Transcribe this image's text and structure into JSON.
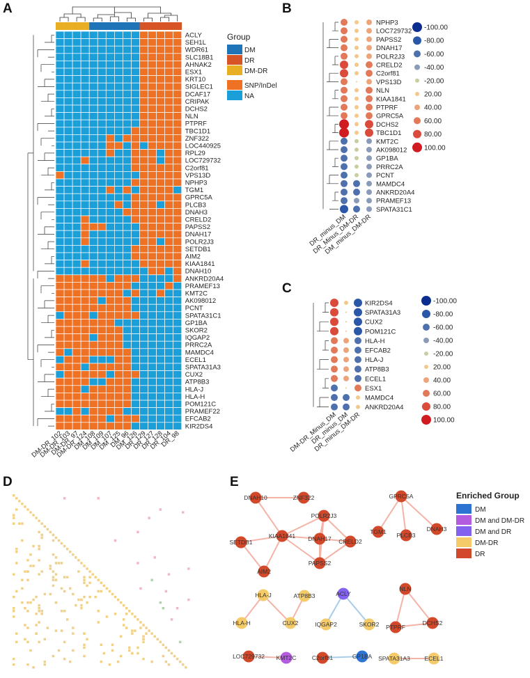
{
  "panels": {
    "A": "A",
    "B": "B",
    "C": "C",
    "D": "D",
    "E": "E"
  },
  "colors": {
    "snp": "#EE7124",
    "na": "#1B9FD8",
    "dm": "#1F73B7",
    "dr": "#D65425",
    "dmdr": "#E9AF24",
    "tri_yellow": "#F2D184",
    "tri_pink": "#F4B6C2",
    "tri_green": "#A9D8A6",
    "node_dr": "#D1482A",
    "node_dmdr": "#F5CB6A",
    "node_dm": "#2C73D2",
    "node_dm_dmdr": "#B45CE0",
    "node_dm_dr": "#8362F0",
    "edge_red": "#F4B3A6",
    "edge_blue": "#A8CDEA"
  },
  "panelA": {
    "legend_group_title": "Group",
    "legend_group": [
      {
        "label": "DM",
        "color": "#1F73B7"
      },
      {
        "label": "DR",
        "color": "#D65425"
      },
      {
        "label": "DM-DR",
        "color": "#E9AF24"
      }
    ],
    "legend_mut": [
      {
        "label": "SNP/InDel",
        "color": "#EE7124"
      },
      {
        "label": "NA",
        "color": "#1B9FD8"
      }
    ],
    "samples": [
      "DM-DR_102",
      "DM-DR_103",
      "DM-DR_97",
      "DM-DR_124",
      "DM_108",
      "DM_109",
      "DM_107",
      "DM_125",
      "DM_96",
      "DM_126",
      "DR_129",
      "DR_127",
      "DR_128",
      "DR_104",
      "DR_98"
    ],
    "sample_groups": [
      "DM-DR",
      "DM-DR",
      "DM-DR",
      "DM-DR",
      "DM",
      "DM",
      "DM",
      "DM",
      "DM",
      "DM",
      "DR",
      "DR",
      "DR",
      "DR",
      "DR"
    ],
    "genes": [
      "ACLY",
      "SEH1L",
      "WDR61",
      "SLC18B1",
      "AHNAK2",
      "ESX1",
      "KRT10",
      "SIGLEC1",
      "DCAF17",
      "CRIPAK",
      "DCHS2",
      "NLN",
      "PTPRF",
      "TBC1D1",
      "ZNF322",
      "LOC440925",
      "RPL29",
      "LOC729732",
      "C2orf81",
      "VPS13D",
      "NPHP3",
      "TGM1",
      "GPRC5A",
      "PLCB3",
      "DNAH3",
      "CRELD2",
      "PAPSS2",
      "DNAH17",
      "POLR2J3",
      "SETDB1",
      "AIM2",
      "KIAA1841",
      "DNAH10",
      "ANKRD20A4",
      "PRAMEF13",
      "KMT2C",
      "AK098012",
      "PCNT",
      "SPATA31C1",
      "GP1BA",
      "SKOR2",
      "IQGAP2",
      "PRRC2A",
      "MAMDC4",
      "ECEL1",
      "SPATA31A3",
      "CUX2",
      "ATP8B3",
      "HLA-J",
      "HLA-H",
      "POM121C",
      "PRAMEF22",
      "EFCAB2",
      "KIR2DS4"
    ],
    "matrix": [
      "000000000011111",
      "000000000011111",
      "000000000011111",
      "000000000011111",
      "000000000011111",
      "000000000011111",
      "000000000011111",
      "000000000011111",
      "000000000011111",
      "000000000011111",
      "000000000011111",
      "000000000011111",
      "000000000011111",
      "000000000111111",
      "000000101111111",
      "000000110101111",
      "000000100111011",
      "000100000111011",
      "000000000111111",
      "100000000011111",
      "000000000111111",
      "000000101011110",
      "000000000111111",
      "000000010111011",
      "000000001111111",
      "000100000111111",
      "000111000011111",
      "000100000011111",
      "000100000011011",
      "000000000111111",
      "000000000111111",
      "000100000011111",
      "000000000001101",
      "111111011100001",
      "111111111000010",
      "111111110100100",
      "111110111000000",
      "111111111000000",
      "011101111100000",
      "111111100000000",
      "111111110000000",
      "111101110000000",
      "111111110000000",
      "101111111000000",
      "011100011000000",
      "111011111000000",
      "011111011100000",
      "111100111000000",
      "111011111000000",
      "111111111000000",
      "111111111000000",
      "001011110000000",
      "111111011100000",
      "111111111000000"
    ]
  },
  "panelB": {
    "genes": [
      "NPHP3",
      "LOC729732",
      "PAPSS2",
      "DNAH17",
      "POLR2J3",
      "CRELD2",
      "C2orf81",
      "VPS13D",
      "NLN",
      "KIAA1841",
      "PTPRF",
      "GPRC5A",
      "DCHS2",
      "TBC1D1",
      "KMT2C",
      "AK098012",
      "GP1BA",
      "PRRC2A",
      "PCNT",
      "MAMDC4",
      "ANKRD20A4",
      "PRAMEF13",
      "SPATA31C1"
    ],
    "columns": [
      "DR_minus_DM",
      "DR_Minus_DM-DR",
      "DM_minus_DM-DR"
    ],
    "values": [
      [
        60,
        20,
        40
      ],
      [
        60,
        20,
        40
      ],
      [
        60,
        20,
        40
      ],
      [
        60,
        20,
        40
      ],
      [
        60,
        20,
        40
      ],
      [
        80,
        20,
        60
      ],
      [
        80,
        20,
        60
      ],
      [
        60,
        0,
        40
      ],
      [
        60,
        20,
        60
      ],
      [
        60,
        20,
        60
      ],
      [
        60,
        20,
        60
      ],
      [
        60,
        20,
        60
      ],
      [
        100,
        20,
        80
      ],
      [
        100,
        20,
        80
      ],
      [
        -60,
        -20,
        -40
      ],
      [
        -60,
        -20,
        -40
      ],
      [
        -60,
        -20,
        -40
      ],
      [
        -60,
        -20,
        -40
      ],
      [
        -60,
        -20,
        -40
      ],
      [
        -60,
        -60,
        -40
      ],
      [
        -60,
        -60,
        -40
      ],
      [
        -60,
        -40,
        -40
      ],
      [
        -80,
        -60,
        -40
      ]
    ],
    "legend": [
      "-100.00",
      "-80.00",
      "-60.00",
      "-40.00",
      "-20.00",
      "20.00",
      "40.00",
      "60.00",
      "80.00",
      "100.00"
    ]
  },
  "panelC": {
    "genes": [
      "KIR2DS4",
      "SPATA31A3",
      "CUX2",
      "POM121C",
      "HLA-H",
      "EFCAB2",
      "HLA-J",
      "ATP8B3",
      "ECEL1",
      "ESX1",
      "MAMDC4",
      "ANKRD20A4"
    ],
    "columns": [
      "DM-DR_Minus_DM",
      "DR_minus_DM",
      "DR_minus_DM-DR"
    ],
    "values": [
      [
        80,
        20,
        -80
      ],
      [
        80,
        0,
        -80
      ],
      [
        80,
        0,
        -80
      ],
      [
        80,
        0,
        -80
      ],
      [
        60,
        40,
        -60
      ],
      [
        60,
        40,
        -60
      ],
      [
        60,
        40,
        -60
      ],
      [
        60,
        40,
        -60
      ],
      [
        60,
        40,
        -60
      ],
      [
        -60,
        0,
        60
      ],
      [
        -60,
        -60,
        20
      ],
      [
        -60,
        -60,
        20
      ]
    ],
    "legend": [
      "-100.00",
      "-80.00",
      "-60.00",
      "-40.00",
      "-20.00",
      "20.00",
      "40.00",
      "60.00",
      "80.00",
      "100.00"
    ]
  },
  "panelE": {
    "legend_title": "Enriched Group",
    "legend": [
      {
        "label": "DM",
        "color": "#2C73D2"
      },
      {
        "label": "DM and DM-DR",
        "color": "#B45CE0"
      },
      {
        "label": "DM and DR",
        "color": "#8362F0"
      },
      {
        "label": "DM-DR",
        "color": "#F5CB6A"
      },
      {
        "label": "DR",
        "color": "#D1482A"
      }
    ],
    "nodes": [
      {
        "label": "DNAH10",
        "g": "dr"
      },
      {
        "label": "ZNF322",
        "g": "dr"
      },
      {
        "label": "POLR2J3",
        "g": "dr"
      },
      {
        "label": "KIAA1841",
        "g": "dr"
      },
      {
        "label": "DNAH17",
        "g": "dr"
      },
      {
        "label": "CRELD2",
        "g": "dr"
      },
      {
        "label": "SETDB1",
        "g": "dr"
      },
      {
        "label": "PAPSS2",
        "g": "dr"
      },
      {
        "label": "AIM2",
        "g": "dr"
      },
      {
        "label": "GPRC5A",
        "g": "dr"
      },
      {
        "label": "TGM1",
        "g": "dr"
      },
      {
        "label": "PLCB3",
        "g": "dr"
      },
      {
        "label": "DNAH3",
        "g": "dr"
      },
      {
        "label": "HLA-J",
        "g": "dmdr"
      },
      {
        "label": "ATP8B3",
        "g": "dmdr"
      },
      {
        "label": "HLA-H",
        "g": "dmdr"
      },
      {
        "label": "CUX2",
        "g": "dmdr"
      },
      {
        "label": "ACLY",
        "g": "dm_dr"
      },
      {
        "label": "IQGAP2",
        "g": "dmdr"
      },
      {
        "label": "SKOR2",
        "g": "dmdr"
      },
      {
        "label": "NLN",
        "g": "dr"
      },
      {
        "label": "PTPRF",
        "g": "dr"
      },
      {
        "label": "DCHS2",
        "g": "dr"
      },
      {
        "label": "LOC729732",
        "g": "dr"
      },
      {
        "label": "KMT2C",
        "g": "dm_dmdr"
      },
      {
        "label": "C2orf81",
        "g": "dr"
      },
      {
        "label": "GP1BA",
        "g": "dm"
      },
      {
        "label": "SPATA31A3",
        "g": "dmdr"
      },
      {
        "label": "ECEL1",
        "g": "dmdr"
      }
    ],
    "edges": [
      [
        "DNAH10",
        "ZNF322",
        "red"
      ],
      [
        "DNAH10",
        "KIAA1841",
        "red"
      ],
      [
        "POLR2J3",
        "KIAA1841",
        "red"
      ],
      [
        "POLR2J3",
        "DNAH17",
        "red"
      ],
      [
        "POLR2J3",
        "CRELD2",
        "red"
      ],
      [
        "POLR2J3",
        "PAPSS2",
        "red"
      ],
      [
        "KIAA1841",
        "DNAH17",
        "red"
      ],
      [
        "KIAA1841",
        "SETDB1",
        "red"
      ],
      [
        "KIAA1841",
        "PAPSS2",
        "red"
      ],
      [
        "KIAA1841",
        "AIM2",
        "red"
      ],
      [
        "SETDB1",
        "AIM2",
        "red"
      ],
      [
        "DNAH17",
        "CRELD2",
        "red"
      ],
      [
        "DNAH17",
        "PAPSS2",
        "red"
      ],
      [
        "CRELD2",
        "PAPSS2",
        "red"
      ],
      [
        "GPRC5A",
        "TGM1",
        "red"
      ],
      [
        "GPRC5A",
        "PLCB3",
        "red"
      ],
      [
        "GPRC5A",
        "DNAH3",
        "red"
      ],
      [
        "HLA-J",
        "HLA-H",
        "red"
      ],
      [
        "HLA-J",
        "CUX2",
        "red"
      ],
      [
        "ATP8B3",
        "CUX2",
        "red"
      ],
      [
        "ACLY",
        "IQGAP2",
        "blue"
      ],
      [
        "ACLY",
        "SKOR2",
        "blue"
      ],
      [
        "NLN",
        "PTPRF",
        "red"
      ],
      [
        "NLN",
        "DCHS2",
        "red"
      ],
      [
        "PTPRF",
        "DCHS2",
        "red"
      ],
      [
        "LOC729732",
        "KMT2C",
        "red"
      ],
      [
        "C2orf81",
        "GP1BA",
        "blue"
      ],
      [
        "SPATA31A3",
        "ECEL1",
        "red"
      ]
    ]
  }
}
